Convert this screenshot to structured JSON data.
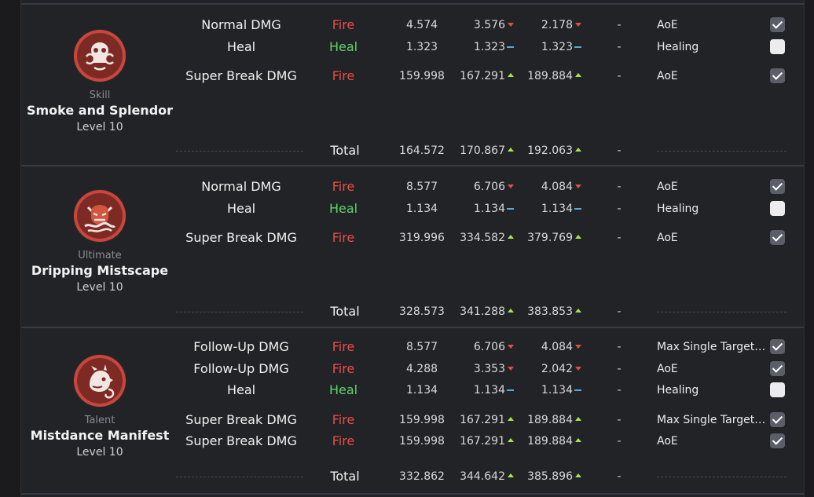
{
  "sections": [
    {
      "skill": {
        "type": "Skill",
        "name": "Smoke and Splendor",
        "level": "Level 10",
        "icon": "smoke-mask-icon"
      },
      "rows": [
        {
          "label": "Normal DMG",
          "element": "Fire",
          "v1": "4.574",
          "v2": "3.576",
          "t2": "down",
          "v3": "2.178",
          "t3": "down",
          "dash": "-",
          "target": "AoE",
          "checked": true
        },
        {
          "label": "Heal",
          "element": "Heal",
          "v1": "1.323",
          "v2": "1.323",
          "t2": "flat",
          "v3": "1.323",
          "t3": "flat",
          "dash": "-",
          "target": "Healing",
          "checked": false
        },
        {
          "label": "Super Break DMG",
          "element": "Fire",
          "v1": "159.998",
          "v2": "167.291",
          "t2": "up",
          "v3": "189.884",
          "t3": "up",
          "dash": "-",
          "target": "AoE",
          "checked": true
        }
      ],
      "total": {
        "label": "Total",
        "v1": "164.572",
        "v2": "170.867",
        "t2": "up",
        "v3": "192.063",
        "t3": "up",
        "dash": "-"
      }
    },
    {
      "skill": {
        "type": "Ultimate",
        "name": "Dripping Mistscape",
        "level": "Level 10",
        "icon": "oni-mask-icon"
      },
      "rows": [
        {
          "label": "Normal DMG",
          "element": "Fire",
          "v1": "8.577",
          "v2": "6.706",
          "t2": "down",
          "v3": "4.084",
          "t3": "down",
          "dash": "-",
          "target": "AoE",
          "checked": true
        },
        {
          "label": "Heal",
          "element": "Heal",
          "v1": "1.134",
          "v2": "1.134",
          "t2": "flat",
          "v3": "1.134",
          "t3": "flat",
          "dash": "-",
          "target": "Healing",
          "checked": false
        },
        {
          "label": "Super Break DMG",
          "element": "Fire",
          "v1": "319.996",
          "v2": "334.582",
          "t2": "up",
          "v3": "379.769",
          "t3": "up",
          "dash": "-",
          "target": "AoE",
          "checked": true
        }
      ],
      "total": {
        "label": "Total",
        "v1": "328.573",
        "v2": "341.288",
        "t2": "up",
        "v3": "383.853",
        "t3": "up",
        "dash": "-"
      }
    },
    {
      "skill": {
        "type": "Talent",
        "name": "Mistdance Manifest",
        "level": "Level 10",
        "icon": "mist-beast-icon"
      },
      "rows": [
        {
          "label": "Follow-Up DMG",
          "element": "Fire",
          "v1": "8.577",
          "v2": "6.706",
          "t2": "down",
          "v3": "4.084",
          "t3": "down",
          "dash": "-",
          "target": "Max Single Target ...",
          "checked": true
        },
        {
          "label": "Follow-Up DMG",
          "element": "Fire",
          "v1": "4.288",
          "v2": "3.353",
          "t2": "down",
          "v3": "2.042",
          "t3": "down",
          "dash": "-",
          "target": "AoE",
          "checked": true
        },
        {
          "label": "Heal",
          "element": "Heal",
          "v1": "1.134",
          "v2": "1.134",
          "t2": "flat",
          "v3": "1.134",
          "t3": "flat",
          "dash": "-",
          "target": "Healing",
          "checked": false
        },
        {
          "label": "Super Break DMG",
          "element": "Fire",
          "v1": "159.998",
          "v2": "167.291",
          "t2": "up",
          "v3": "189.884",
          "t3": "up",
          "dash": "-",
          "target": "Max Single Target ...",
          "checked": true
        },
        {
          "label": "Super Break DMG",
          "element": "Fire",
          "v1": "159.998",
          "v2": "167.291",
          "t2": "up",
          "v3": "189.884",
          "t3": "up",
          "dash": "-",
          "target": "AoE",
          "checked": true
        }
      ],
      "total": {
        "label": "Total",
        "v1": "332.862",
        "v2": "344.642",
        "t2": "up",
        "v3": "385.896",
        "t3": "up",
        "dash": "-"
      }
    }
  ]
}
